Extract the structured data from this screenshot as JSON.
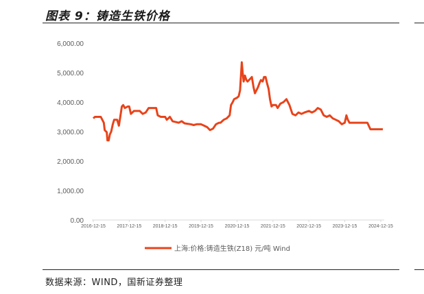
{
  "figure": {
    "title": "图表 9：铸造生铁价格",
    "source": "数据来源：WIND，国新证券整理"
  },
  "colors": {
    "series": "#E8431A",
    "axis": "#d9d9d9",
    "text": "#595959"
  },
  "chart_data": {
    "type": "line",
    "title": "",
    "xlabel": "",
    "ylabel": "",
    "ylim": [
      0,
      6000
    ],
    "y_ticks": [
      "0.00",
      "1,000.00",
      "2,000.00",
      "3,000.00",
      "4,000.00",
      "5,000.00",
      "6,000.00"
    ],
    "x_ticks": [
      "2016-12-15",
      "2017-12-15",
      "2018-12-15",
      "2019-12-15",
      "2020-12-15",
      "2021-12-15",
      "2022-12-15",
      "2023-12-15",
      "2024-12-15"
    ],
    "legend_position": "bottom",
    "grid": false,
    "series": [
      {
        "name": "上海:价格:铸造生铁(Z18) 元/吨 Wind",
        "points": [
          [
            "2016-12-15",
            3450
          ],
          [
            "2017-01-01",
            3500
          ],
          [
            "2017-03-01",
            3500
          ],
          [
            "2017-04-01",
            3300
          ],
          [
            "2017-04-10",
            3050
          ],
          [
            "2017-05-01",
            2980
          ],
          [
            "2017-05-08",
            2700
          ],
          [
            "2017-05-20",
            2700
          ],
          [
            "2017-06-01",
            2900
          ],
          [
            "2017-06-15",
            3000
          ],
          [
            "2017-07-01",
            3250
          ],
          [
            "2017-07-15",
            3400
          ],
          [
            "2017-08-15",
            3400
          ],
          [
            "2017-09-01",
            3200
          ],
          [
            "2017-09-15",
            3500
          ],
          [
            "2017-10-01",
            3850
          ],
          [
            "2017-10-15",
            3900
          ],
          [
            "2017-11-01",
            3800
          ],
          [
            "2017-12-01",
            3850
          ],
          [
            "2017-12-15",
            3850
          ],
          [
            "2018-01-01",
            3600
          ],
          [
            "2018-02-01",
            3700
          ],
          [
            "2018-04-01",
            3700
          ],
          [
            "2018-05-01",
            3600
          ],
          [
            "2018-06-01",
            3650
          ],
          [
            "2018-07-01",
            3800
          ],
          [
            "2018-09-15",
            3800
          ],
          [
            "2018-10-01",
            3550
          ],
          [
            "2018-11-01",
            3500
          ],
          [
            "2018-12-15",
            3500
          ],
          [
            "2019-01-01",
            3400
          ],
          [
            "2019-02-01",
            3500
          ],
          [
            "2019-03-01",
            3350
          ],
          [
            "2019-05-01",
            3300
          ],
          [
            "2019-06-01",
            3350
          ],
          [
            "2019-07-01",
            3280
          ],
          [
            "2019-09-01",
            3250
          ],
          [
            "2019-10-01",
            3220
          ],
          [
            "2019-11-01",
            3250
          ],
          [
            "2019-12-15",
            3250
          ],
          [
            "2020-01-15",
            3200
          ],
          [
            "2020-02-15",
            3150
          ],
          [
            "2020-03-15",
            3050
          ],
          [
            "2020-04-15",
            3100
          ],
          [
            "2020-05-15",
            3250
          ],
          [
            "2020-06-15",
            3300
          ],
          [
            "2020-07-01",
            3300
          ],
          [
            "2020-08-01",
            3400
          ],
          [
            "2020-09-01",
            3450
          ],
          [
            "2020-10-01",
            3550
          ],
          [
            "2020-10-15",
            3900
          ],
          [
            "2020-11-01",
            4000
          ],
          [
            "2020-11-15",
            4100
          ],
          [
            "2020-12-15",
            4150
          ],
          [
            "2021-01-01",
            4200
          ],
          [
            "2021-01-15",
            4400
          ],
          [
            "2021-02-01",
            5350
          ],
          [
            "2021-02-10",
            5000
          ],
          [
            "2021-02-20",
            4700
          ],
          [
            "2021-03-05",
            4900
          ],
          [
            "2021-03-20",
            4750
          ],
          [
            "2021-04-01",
            4700
          ],
          [
            "2021-05-01",
            4800
          ],
          [
            "2021-05-15",
            4850
          ],
          [
            "2021-06-01",
            4500
          ],
          [
            "2021-06-15",
            4300
          ],
          [
            "2021-07-15",
            4500
          ],
          [
            "2021-08-01",
            4650
          ],
          [
            "2021-08-15",
            4750
          ],
          [
            "2021-09-01",
            4700
          ],
          [
            "2021-09-15",
            4850
          ],
          [
            "2021-10-01",
            4850
          ],
          [
            "2021-10-15",
            4650
          ],
          [
            "2021-11-01",
            4450
          ],
          [
            "2021-11-15",
            4100
          ],
          [
            "2021-12-01",
            3850
          ],
          [
            "2021-12-15",
            3900
          ],
          [
            "2022-01-15",
            3900
          ],
          [
            "2022-02-01",
            3800
          ],
          [
            "2022-03-01",
            3950
          ],
          [
            "2022-04-01",
            4000
          ],
          [
            "2022-05-01",
            4100
          ],
          [
            "2022-06-01",
            3900
          ],
          [
            "2022-07-01",
            3600
          ],
          [
            "2022-08-01",
            3550
          ],
          [
            "2022-09-01",
            3650
          ],
          [
            "2022-10-01",
            3600
          ],
          [
            "2022-11-01",
            3650
          ],
          [
            "2022-12-15",
            3700
          ],
          [
            "2023-01-15",
            3650
          ],
          [
            "2023-02-15",
            3700
          ],
          [
            "2023-03-15",
            3800
          ],
          [
            "2023-04-15",
            3750
          ],
          [
            "2023-05-15",
            3550
          ],
          [
            "2023-06-15",
            3500
          ],
          [
            "2023-07-15",
            3550
          ],
          [
            "2023-08-15",
            3450
          ],
          [
            "2023-09-15",
            3400
          ],
          [
            "2023-10-15",
            3350
          ],
          [
            "2023-11-15",
            3250
          ],
          [
            "2023-12-15",
            3300
          ],
          [
            "2024-01-01",
            3550
          ],
          [
            "2024-01-15",
            3400
          ],
          [
            "2024-02-01",
            3300
          ],
          [
            "2024-07-01",
            3300
          ],
          [
            "2024-08-01",
            3300
          ],
          [
            "2024-09-01",
            3080
          ],
          [
            "2024-10-15",
            3080
          ],
          [
            "2024-11-15",
            3080
          ],
          [
            "2024-12-15",
            3080
          ],
          [
            "2025-01-05",
            3080
          ]
        ]
      }
    ]
  }
}
